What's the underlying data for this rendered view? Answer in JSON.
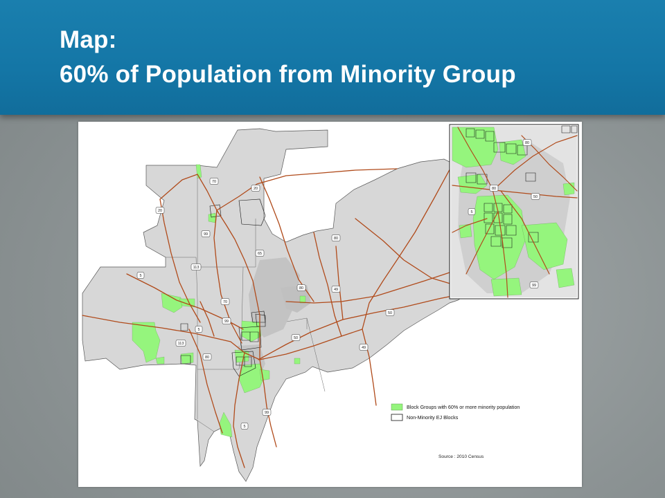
{
  "slide": {
    "title_line1": "Map:",
    "title_line2": "60% of Population from Minority Group"
  },
  "colors": {
    "header_bg": "#1476a6",
    "region_fill": "#d7d7d7",
    "minority_fill": "#95f57d",
    "highway": "#b04a1a",
    "border": "#444444"
  },
  "map": {
    "legend": {
      "minority_label": "Block Groups with 60% or more minority population",
      "ej_label": "Non-Minority EJ Blocks"
    },
    "source": "Source : 2010 Census",
    "shields": {
      "s70a": "70",
      "s20a": "20",
      "s20b": "20",
      "s99a": "99",
      "s113a": "113",
      "s5a": "5",
      "s65": "65",
      "s80a": "80",
      "s80b": "80",
      "s49a": "49",
      "s70b": "70",
      "s99b": "99",
      "s5b": "5",
      "s50a": "50",
      "s113b": "113",
      "s80c": "80",
      "s50b": "50",
      "s49b": "49",
      "s99c": "99",
      "s5c": "5",
      "i80a": "80",
      "i5": "5",
      "i50": "50",
      "i80b": "80",
      "i99": "99"
    }
  }
}
